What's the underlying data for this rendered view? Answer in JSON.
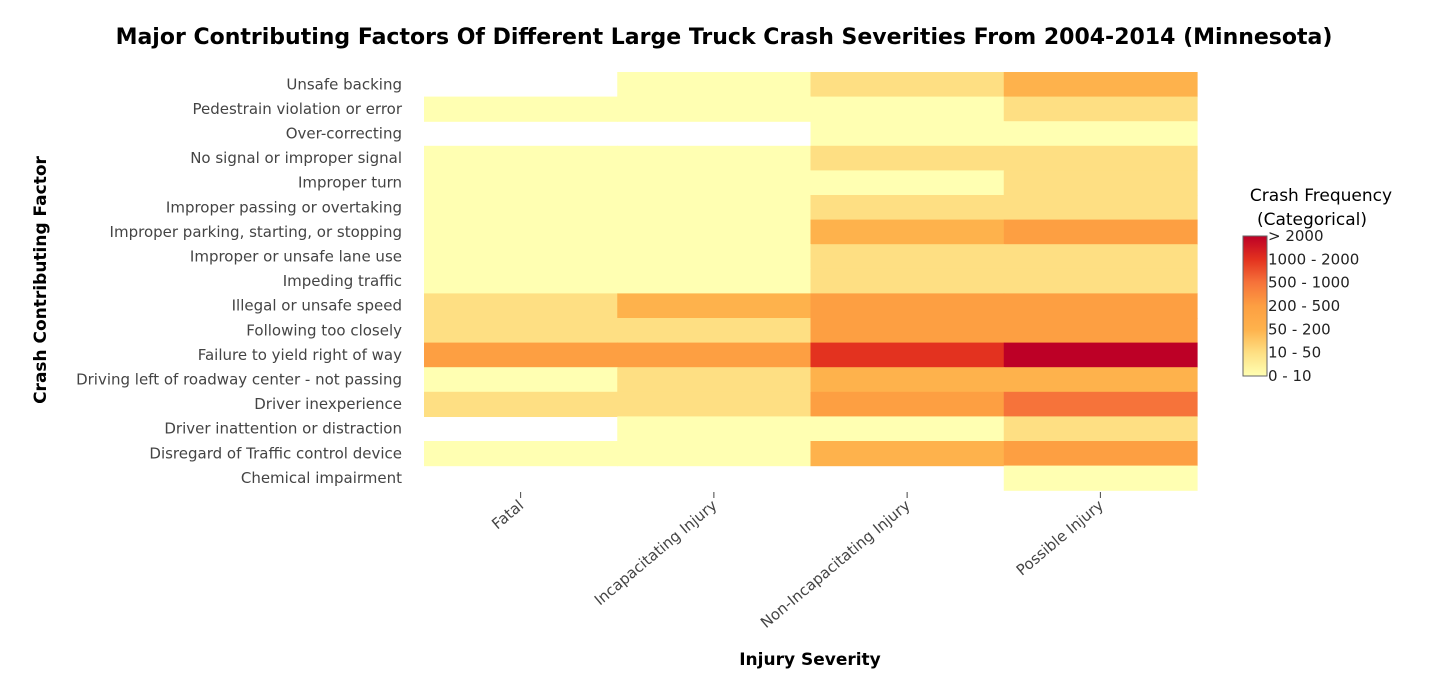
{
  "chart_data": {
    "type": "heatmap",
    "title": "Major Contributing Factors Of Different Large Truck Crash Severities From 2004-2014 (Minnesota)",
    "xlabel": "Injury Severity",
    "ylabel": "Crash Contributing Factor",
    "x": [
      "Fatal",
      "Incapacitating Injury",
      "Non-Incapacitating Injury",
      "Possible Injury"
    ],
    "y": [
      "Unsafe backing",
      "Pedestrain violation or error",
      "Over-correcting",
      "No signal or improper signal",
      "Improper turn",
      "Improper passing or overtaking",
      "Improper parking, starting, or stopping",
      "Improper or unsafe lane use",
      "Impeding traffic",
      "Illegal or unsafe speed",
      "Following too closely",
      "Failure to yield right of way",
      "Driving left of roadway center - not passing",
      "Driver inexperience",
      "Driver inattention or distraction",
      "Disregard of Traffic control device",
      "Chemical impairment"
    ],
    "categories": [
      "0 - 10",
      "10 - 50",
      "50 - 200",
      "200 - 500",
      "500 - 1000",
      "1000 - 2000",
      "> 2000"
    ],
    "values": [
      [
        null,
        0,
        1,
        2
      ],
      [
        0,
        0,
        0,
        1
      ],
      [
        null,
        null,
        0,
        0
      ],
      [
        0,
        0,
        1,
        1
      ],
      [
        0,
        0,
        0,
        1
      ],
      [
        0,
        0,
        1,
        1
      ],
      [
        0,
        0,
        2,
        3
      ],
      [
        0,
        0,
        1,
        1
      ],
      [
        0,
        0,
        1,
        1
      ],
      [
        1,
        2,
        3,
        3
      ],
      [
        1,
        1,
        3,
        3
      ],
      [
        3,
        3,
        5,
        6
      ],
      [
        0,
        1,
        2,
        2
      ],
      [
        1,
        1,
        3,
        4
      ],
      [
        null,
        0,
        0,
        1
      ],
      [
        0,
        0,
        2,
        3
      ],
      [
        null,
        null,
        null,
        0
      ]
    ],
    "colors": [
      "#ffffb2",
      "#fedf83",
      "#feb24c",
      "#fd9f42",
      "#f6733a",
      "#e3321f",
      "#bd0026"
    ],
    "legend": {
      "title_line1": "Crash Frequency",
      "title_line2": "(Categorical)",
      "placement": "right"
    }
  }
}
